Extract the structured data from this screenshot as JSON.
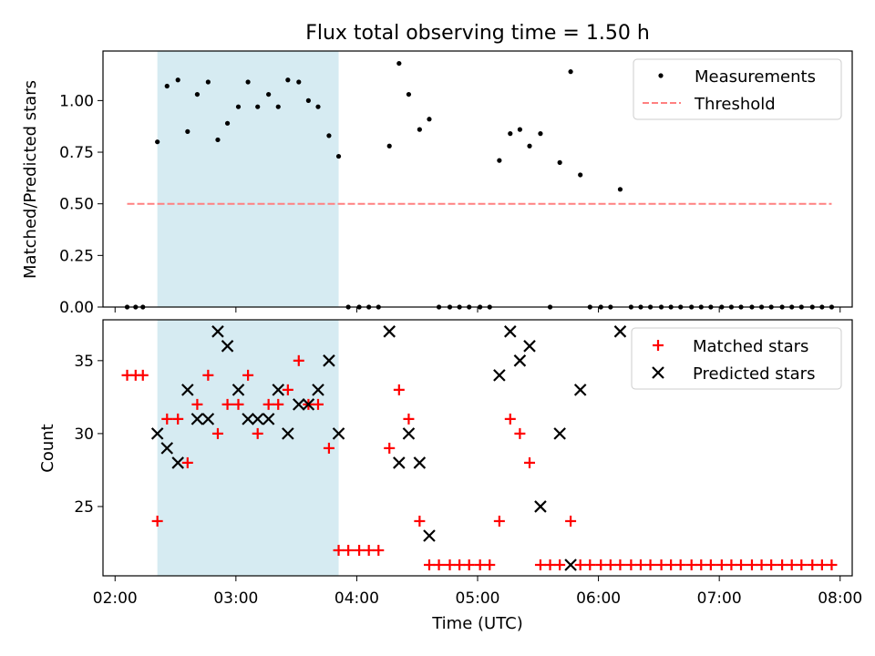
{
  "title": "Flux total observing time = 1.50 h",
  "chart_data": [
    {
      "type": "scatter",
      "title": "Flux total observing time = 1.50 h",
      "xlabel": "",
      "ylabel": "Matched/Predicted stars",
      "x_unit": "hours UTC",
      "xlim": [
        1.9,
        8.1
      ],
      "ylim": [
        0,
        1.24
      ],
      "yticks": [
        0.0,
        0.25,
        0.5,
        0.75,
        1.0
      ],
      "ytick_labels": [
        "0.00",
        "0.25",
        "0.50",
        "0.75",
        "1.00"
      ],
      "shaded_region": {
        "x": [
          2.35,
          3.85
        ],
        "color": "#add8e6"
      },
      "legend_position": "top-right",
      "series": [
        {
          "name": "Measurements",
          "kind": "points",
          "color": "#000000",
          "x": [
            2.1,
            2.17,
            2.23,
            2.35,
            2.43,
            2.52,
            2.6,
            2.68,
            2.77,
            2.85,
            2.93,
            3.02,
            3.1,
            3.18,
            3.27,
            3.35,
            3.43,
            3.52,
            3.6,
            3.68,
            3.77,
            3.85,
            3.93,
            4.02,
            4.1,
            4.18,
            4.27,
            4.35,
            4.43,
            4.52,
            4.6,
            4.68,
            4.77,
            4.85,
            4.93,
            5.02,
            5.1,
            5.18,
            5.27,
            5.35,
            5.43,
            5.52,
            5.6,
            5.68,
            5.77,
            5.85,
            5.93,
            6.02,
            6.1,
            6.18,
            6.27,
            6.35,
            6.43,
            6.52,
            6.6,
            6.68,
            6.77,
            6.85,
            6.93,
            7.02,
            7.1,
            7.18,
            7.27,
            7.35,
            7.43,
            7.52,
            7.6,
            7.68,
            7.77,
            7.85,
            7.93
          ],
          "y": [
            0,
            0,
            0,
            0.8,
            1.07,
            1.1,
            0.85,
            1.03,
            1.09,
            0.81,
            0.89,
            0.97,
            1.09,
            0.97,
            1.03,
            0.97,
            1.1,
            1.09,
            1.0,
            0.97,
            0.83,
            0.73,
            0,
            0,
            0,
            0,
            0.78,
            1.18,
            1.03,
            0.86,
            0.91,
            0,
            0,
            0,
            0,
            0,
            0,
            0.71,
            0.84,
            0.86,
            0.78,
            0.84,
            0,
            0.7,
            1.14,
            0.64,
            0,
            0,
            0,
            0.57,
            0,
            0,
            0,
            0,
            0,
            0,
            0,
            0,
            0,
            0,
            0,
            0,
            0,
            0,
            0,
            0,
            0,
            0,
            0,
            0,
            0
          ]
        },
        {
          "name": "Threshold",
          "kind": "dashed-line",
          "color": "#ff8080",
          "x": [
            2.1,
            7.93
          ],
          "y": [
            0.5,
            0.5
          ]
        }
      ]
    },
    {
      "type": "scatter",
      "xlabel": "Time (UTC)",
      "ylabel": "Count",
      "x_unit": "hours UTC",
      "xlim": [
        1.9,
        8.1
      ],
      "ylim": [
        20.25,
        37.8
      ],
      "yticks": [
        25,
        30,
        35
      ],
      "xticks": [
        2,
        3,
        4,
        5,
        6,
        7,
        8
      ],
      "xtick_labels": [
        "02:00",
        "03:00",
        "04:00",
        "05:00",
        "06:00",
        "07:00",
        "08:00"
      ],
      "shaded_region": {
        "x": [
          2.35,
          3.85
        ],
        "color": "#add8e6"
      },
      "legend_position": "top-right",
      "series": [
        {
          "name": "Matched stars",
          "marker": "plus",
          "color": "#ff0000",
          "x": [
            2.1,
            2.17,
            2.23,
            2.35,
            2.43,
            2.52,
            2.6,
            2.68,
            2.77,
            2.85,
            2.93,
            3.02,
            3.1,
            3.18,
            3.27,
            3.35,
            3.43,
            3.52,
            3.6,
            3.68,
            3.77,
            3.85,
            3.93,
            4.02,
            4.1,
            4.18,
            4.27,
            4.35,
            4.43,
            4.52,
            4.6,
            4.68,
            4.77,
            4.85,
            4.93,
            5.02,
            5.1,
            5.18,
            5.27,
            5.35,
            5.43,
            5.52,
            5.6,
            5.68,
            5.77,
            5.85,
            5.93,
            6.02,
            6.1,
            6.18,
            6.27,
            6.35,
            6.43,
            6.52,
            6.6,
            6.68,
            6.77,
            6.85,
            6.93,
            7.02,
            7.1,
            7.18,
            7.27,
            7.35,
            7.43,
            7.52,
            7.6,
            7.68,
            7.77,
            7.85,
            7.93
          ],
          "y": [
            34,
            34,
            34,
            24,
            31,
            31,
            28,
            32,
            34,
            30,
            32,
            32,
            34,
            30,
            32,
            32,
            33,
            35,
            32,
            32,
            29,
            22,
            22,
            22,
            22,
            22,
            29,
            33,
            31,
            24,
            21,
            21,
            21,
            21,
            21,
            21,
            21,
            24,
            31,
            30,
            28,
            21,
            21,
            21,
            24,
            21,
            21,
            21,
            21,
            21,
            21,
            21,
            21,
            21,
            21,
            21,
            21,
            21,
            21,
            21,
            21,
            21,
            21,
            21,
            21,
            21,
            21,
            21,
            21,
            21,
            21
          ]
        },
        {
          "name": "Predicted stars",
          "marker": "x",
          "color": "#000000",
          "x": [
            2.35,
            2.43,
            2.52,
            2.6,
            2.68,
            2.77,
            2.85,
            2.93,
            3.02,
            3.1,
            3.18,
            3.27,
            3.35,
            3.43,
            3.52,
            3.6,
            3.68,
            3.77,
            3.85,
            4.27,
            4.35,
            4.43,
            4.52,
            4.6,
            5.18,
            5.27,
            5.35,
            5.43,
            5.52,
            5.68,
            5.77,
            5.85,
            6.18
          ],
          "y": [
            30,
            29,
            28,
            33,
            31,
            31,
            37,
            36,
            33,
            31,
            31,
            31,
            33,
            30,
            32,
            32,
            33,
            35,
            30,
            37,
            28,
            30,
            28,
            23,
            34,
            37,
            35,
            36,
            25,
            30,
            21,
            33,
            37
          ]
        }
      ]
    }
  ]
}
